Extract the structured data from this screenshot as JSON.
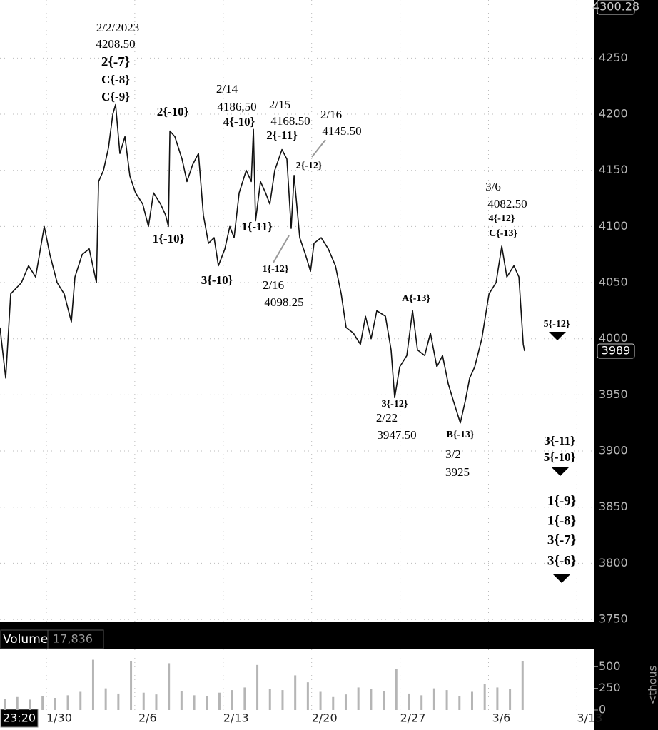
{
  "status": {
    "time": "23:20"
  },
  "chart_data": [
    {
      "type": "line",
      "color": "#111111",
      "xlim": [
        26.33,
        73.39
      ],
      "ylim": [
        3747.5,
        4301.7
      ],
      "xticks": [
        {
          "value": 30,
          "label": "1/30"
        },
        {
          "value": 37,
          "label": "2/6"
        },
        {
          "value": 44,
          "label": "2/13"
        },
        {
          "value": 51,
          "label": "2/20"
        },
        {
          "value": 58,
          "label": "2/27"
        },
        {
          "value": 65,
          "label": "3/6"
        },
        {
          "value": 72,
          "label": "3/13"
        }
      ],
      "yticks": [
        3750,
        3800,
        3850,
        3900,
        3950,
        4000,
        4050,
        4100,
        4150,
        4200,
        4250
      ],
      "grid": true,
      "price_markers": [
        4300.28,
        3989
      ],
      "x": [
        26.33,
        26.78,
        27.18,
        28.03,
        28.59,
        29.15,
        29.83,
        30.28,
        30.85,
        31.41,
        31.98,
        32.26,
        32.83,
        33.39,
        33.96,
        34.13,
        34.52,
        34.92,
        35.26,
        35.48,
        35.82,
        36.22,
        36.61,
        37.06,
        37.63,
        38.08,
        38.48,
        39.04,
        39.44,
        39.66,
        39.78,
        40.17,
        40.74,
        41.13,
        41.58,
        42.04,
        42.43,
        42.83,
        43.28,
        43.62,
        44.13,
        44.52,
        44.86,
        45.26,
        45.82,
        46.22,
        46.39,
        46.56,
        46.95,
        47.35,
        47.69,
        48.08,
        48.65,
        49.04,
        49.38,
        49.61,
        50.06,
        50.51,
        50.91,
        51.19,
        51.75,
        52.32,
        52.88,
        53.34,
        53.73,
        54.3,
        54.86,
        55.26,
        55.71,
        56.16,
        56.84,
        57.29,
        57.57,
        57.97,
        58.53,
        58.99,
        59.38,
        59.95,
        60.4,
        60.91,
        61.36,
        61.81,
        62.21,
        62.77,
        63.17,
        63.51,
        63.91,
        64.47,
        65.04,
        65.6,
        66.05,
        66.45,
        67.01,
        67.41,
        67.75,
        67.86
      ],
      "values": [
        4010,
        3965,
        4040,
        4050,
        4065,
        4055,
        4100,
        4075,
        4050,
        4040,
        4015,
        4055,
        4075,
        4080,
        4050,
        4140,
        4150,
        4170,
        4200,
        4208.5,
        4165,
        4180,
        4145,
        4130,
        4120,
        4100,
        4130,
        4120,
        4110,
        4100,
        4185,
        4180,
        4160,
        4140,
        4155,
        4165,
        4110,
        4085,
        4090,
        4065,
        4080,
        4100,
        4090,
        4130,
        4150,
        4140,
        4186.5,
        4105,
        4140,
        4130,
        4120,
        4150,
        4168.5,
        4160,
        4098.25,
        4145.5,
        4090,
        4075,
        4060,
        4085,
        4090,
        4080,
        4065,
        4040,
        4010,
        4005,
        3995,
        4020,
        4000,
        4025,
        4020,
        3990,
        3947.5,
        3975,
        3985,
        4025,
        3990,
        3985,
        4005,
        3975,
        3985,
        3960,
        3945,
        3925,
        3945,
        3965,
        3975,
        4000,
        4040,
        4050,
        4082.5,
        4055,
        4065,
        4055,
        3995,
        3989
      ],
      "annotations": [
        [
          "2/2/2023",
          "4208.50",
          "2{-7}",
          "C{-8}",
          "C{-9}"
        ],
        [
          "2{-10}"
        ],
        [
          "2/14",
          "4186,50",
          "4{-10}"
        ],
        [
          "2/15",
          "4168.50",
          "2{-11}"
        ],
        [
          "2/16",
          "4145.50",
          "2{-12}"
        ],
        [
          "1{-10}"
        ],
        [
          "3{-10}"
        ],
        [
          "1{-11}"
        ],
        [
          "1{-12}",
          "2/16",
          "4098.25"
        ],
        [
          "A{-13}"
        ],
        [
          "3{-12}",
          "2/22",
          "3947.50"
        ],
        [
          "B{-13}",
          "3/2",
          "3925"
        ],
        [
          "3/6",
          "4082.50",
          "4{-12}",
          "C{-13}"
        ],
        [
          "5{-12}"
        ],
        [
          "3{-11}",
          "5{-10}"
        ],
        [
          "1{-9}",
          "1{-8}",
          "3{-7}",
          "3{-6}"
        ]
      ]
    },
    {
      "type": "bar",
      "title": "Volume",
      "readout": {
        "value": 17836,
        "label": "17,836"
      },
      "ylabel": "<thous",
      "color": "#b5b5b5",
      "xlim": [
        26.33,
        73.39
      ],
      "ylim": [
        0,
        700
      ],
      "yticks": [
        0,
        250,
        500
      ],
      "x": [
        26.7,
        27.7,
        28.7,
        29.7,
        30.7,
        31.7,
        32.7,
        33.7,
        34.7,
        35.7,
        36.7,
        37.7,
        38.7,
        39.7,
        40.7,
        41.7,
        42.7,
        43.7,
        44.7,
        45.7,
        46.7,
        47.7,
        48.7,
        49.7,
        50.7,
        51.7,
        52.7,
        53.7,
        54.7,
        55.7,
        56.7,
        57.7,
        58.7,
        59.7,
        60.7,
        61.7,
        62.7,
        63.7,
        64.7,
        65.7,
        66.7,
        67.7
      ],
      "values": [
        130,
        150,
        120,
        160,
        140,
        170,
        210,
        580,
        250,
        190,
        560,
        200,
        180,
        540,
        220,
        170,
        160,
        200,
        230,
        260,
        520,
        240,
        230,
        400,
        320,
        210,
        150,
        180,
        260,
        240,
        220,
        470,
        190,
        170,
        250,
        230,
        160,
        210,
        300,
        260,
        240,
        560
      ]
    }
  ]
}
